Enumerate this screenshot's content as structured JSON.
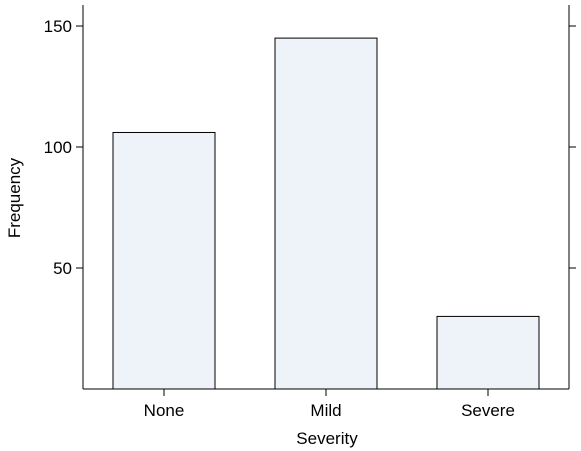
{
  "chart_data": {
    "type": "bar",
    "categories": [
      "None",
      "Mild",
      "Severe"
    ],
    "values": [
      106,
      145,
      30
    ],
    "xlabel": "Severity",
    "ylabel": "Frequency",
    "ylim": [
      0,
      160
    ],
    "yticks": [
      50,
      100,
      150
    ],
    "grid": false,
    "bar_fill": "#eef2f9",
    "bar_stroke": "#000000"
  }
}
